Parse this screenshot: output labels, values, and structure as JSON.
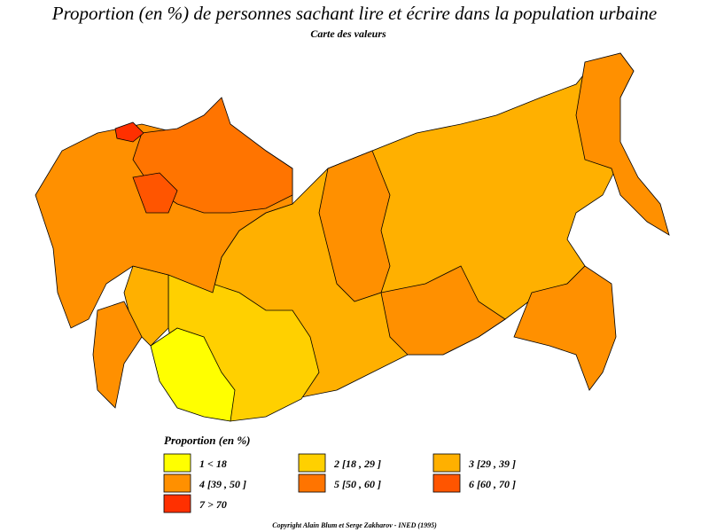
{
  "header": {
    "title": "Proportion (en %) de personnes sachant lire et écrire dans la population urbaine",
    "subtitle": "Carte des valeurs"
  },
  "legend": {
    "title": "Proportion (en %)",
    "items": [
      {
        "label": "1  <  18",
        "color": "#ffff00"
      },
      {
        "label": "2  [18 , 29 ]",
        "color": "#ffd000"
      },
      {
        "label": "3  [29 , 39 ]",
        "color": "#ffb000"
      },
      {
        "label": "4  [39 , 50 ]",
        "color": "#ff9000"
      },
      {
        "label": "5  [50 , 60 ]",
        "color": "#ff7400"
      },
      {
        "label": "6  [60 , 70 ]",
        "color": "#ff5500"
      },
      {
        "label": "7  >  70",
        "color": "#ff3000"
      }
    ]
  },
  "footer": {
    "copyright": "Copyright Alain Blum et Serge Zakharov  -  INED (1995)"
  }
}
